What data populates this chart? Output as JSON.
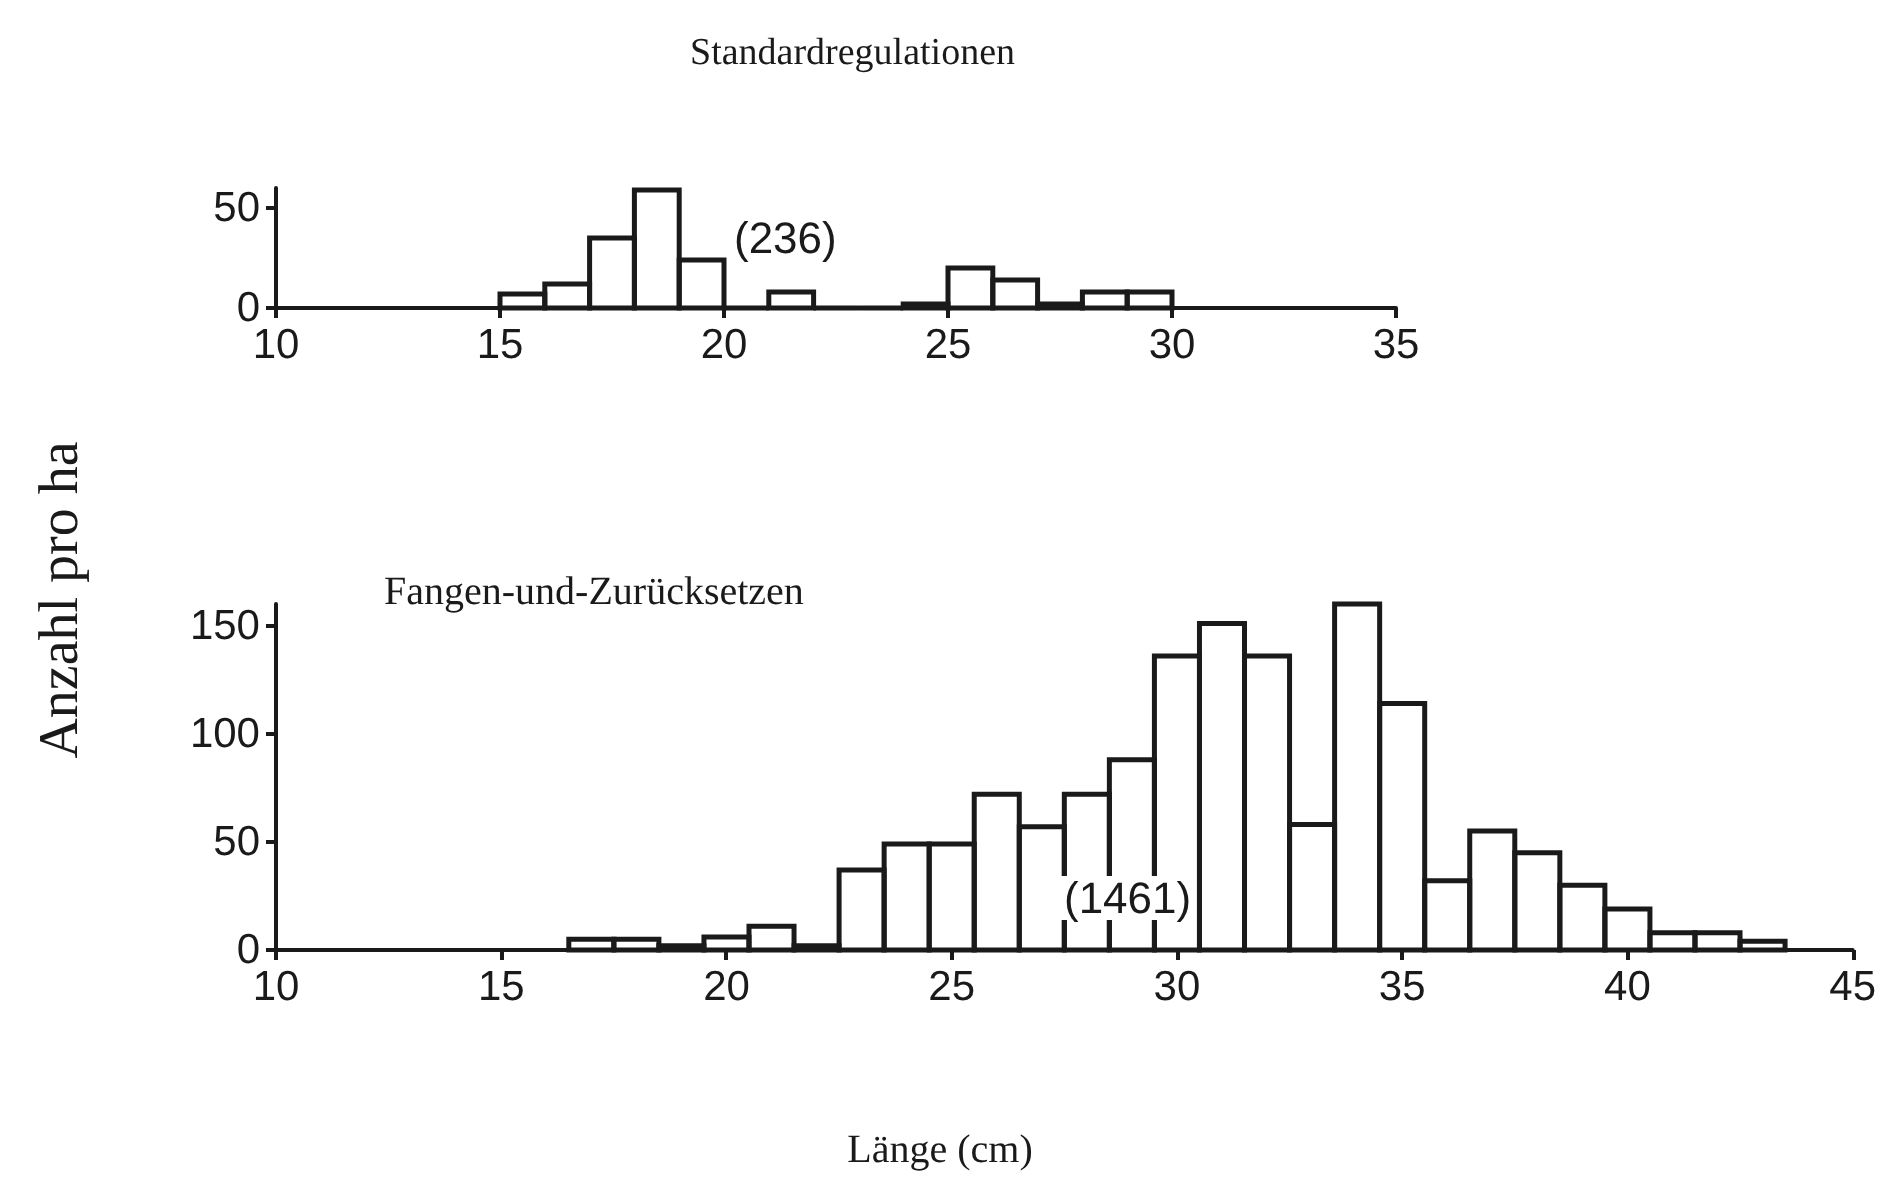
{
  "chart_data": [
    {
      "type": "histogram",
      "title": "Standardregulationen",
      "annotations": [
        "(236)"
      ],
      "color": "#1a1a1a",
      "bins": [
        15,
        16,
        17,
        18,
        19,
        20,
        21,
        22,
        23,
        24,
        25,
        26,
        27,
        28,
        29,
        30
      ],
      "values": [
        7,
        12,
        35,
        59,
        24,
        0,
        8,
        0,
        0,
        2,
        20,
        14,
        2,
        8,
        8
      ],
      "xlim": [
        10,
        35
      ],
      "xticks": [
        10,
        15,
        20,
        25,
        30,
        35
      ],
      "ylim": [
        0,
        60
      ],
      "yticks": [
        0,
        50
      ]
    },
    {
      "type": "histogram",
      "xlabel": "Länge (cm)",
      "ylabel": "Anzahl pro ha",
      "annotations": [
        "Fangen-und-Zurücksetzen",
        "(1461)"
      ],
      "color": "#1a1a1a",
      "bins": [
        16.5,
        17.5,
        18.5,
        19.5,
        20.5,
        21.5,
        22.5,
        23.5,
        24.5,
        25.5,
        26.5,
        27.5,
        28.5,
        29.5,
        30.5,
        31.5,
        32.5,
        33.5,
        34.5,
        35.5,
        36.5,
        37.5,
        38.5,
        39.5,
        40.5,
        41.5,
        42.5,
        43.5
      ],
      "values": [
        5,
        5,
        2,
        6,
        11,
        2,
        37,
        49,
        49,
        72,
        57,
        72,
        88,
        136,
        151,
        136,
        58,
        160,
        114,
        32,
        55,
        45,
        30,
        19,
        8,
        8,
        4
      ],
      "xlim": [
        10,
        45
      ],
      "xticks": [
        10,
        15,
        20,
        25,
        30,
        35,
        40,
        45
      ],
      "ylim": [
        0,
        160
      ],
      "yticks": [
        0,
        50,
        100,
        150
      ]
    }
  ]
}
